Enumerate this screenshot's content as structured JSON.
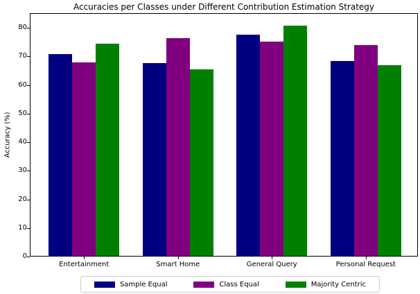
{
  "chart_data": {
    "type": "bar",
    "title": "Accuracies per Classes under Different Contribution Estimation Strategy",
    "xlabel": "",
    "ylabel": "Accuracy (%)",
    "categories": [
      "Entertainment",
      "Smart Home",
      "General Query",
      "Personal Request"
    ],
    "series": [
      {
        "name": "Sample Equal",
        "color": "#000080",
        "values": [
          71.0,
          67.8,
          77.8,
          68.5
        ]
      },
      {
        "name": "Class Equal",
        "color": "#800080",
        "values": [
          68.0,
          76.6,
          75.4,
          74.2
        ]
      },
      {
        "name": "Majority Centric",
        "color": "#008000",
        "values": [
          74.7,
          65.5,
          81.0,
          67.0
        ]
      }
    ],
    "yticks": [
      0,
      10,
      20,
      30,
      40,
      50,
      60,
      70,
      80
    ],
    "ylim": [
      0,
      85.1
    ],
    "grid": false,
    "legend_position": "bottom-center",
    "bar_color_names": [
      "navy",
      "purple",
      "green"
    ]
  }
}
